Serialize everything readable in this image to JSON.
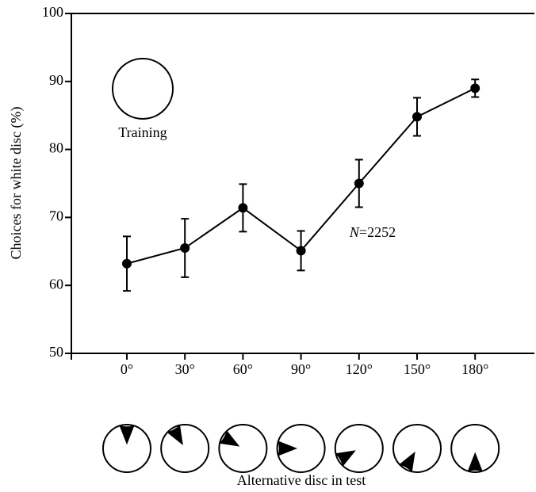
{
  "chart_data": {
    "type": "line",
    "y_label": "Choices for white disc (%)",
    "x_label": "Alternative disc in test",
    "annotation": "N=2252",
    "inset_label": "Training",
    "categories": [
      "0°",
      "30°",
      "60°",
      "90°",
      "120°",
      "150°",
      "180°"
    ],
    "series": [
      {
        "color": "#000000",
        "values": [
          63.2,
          65.5,
          71.4,
          65.1,
          75.0,
          84.8,
          89.0
        ],
        "errors": [
          4.0,
          4.3,
          3.5,
          2.9,
          3.5,
          2.8,
          1.3
        ]
      }
    ],
    "ylim": [
      50,
      100
    ],
    "yticks": [
      50,
      60,
      70,
      80,
      90,
      100
    ]
  }
}
